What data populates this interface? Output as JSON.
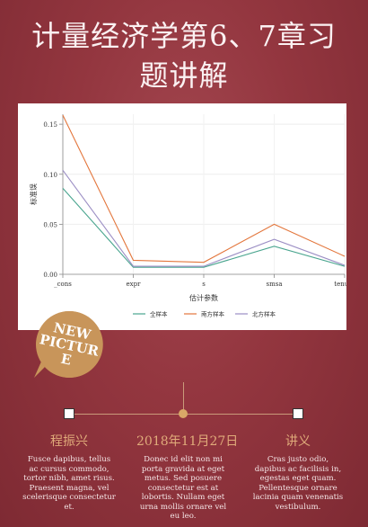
{
  "title": {
    "line1": "计量经济学第6、7章习",
    "line2": "题讲解"
  },
  "badge": {
    "line1": "NEW",
    "line2": "PICTUR",
    "line3": "E"
  },
  "timeline": {
    "columns": [
      {
        "title": "程振兴",
        "body": "Fusce dapibus, tellus ac cursus commodo, tortor nibh, amet risus. Praesent magna, vel scelerisque consectetur et."
      },
      {
        "title": "2018年11月27日",
        "body": "Donec id elit non mi porta gravida at eget metus. Sed posuere consectetur est at lobortis. Nullam eget urna mollis ornare vel eu leo."
      },
      {
        "title": "讲义",
        "body": "Cras justo odio, dapibus ac facilisis in, egestas eget quam. Pellentesque ornare lacinia quam venenatis vestibulum."
      }
    ]
  },
  "colors": {
    "background": "#93363f",
    "accent": "#d9a867",
    "series_full": "#4aa58f",
    "series_south": "#e3763c",
    "series_north": "#9b8ec4"
  },
  "chart_data": {
    "type": "line",
    "xlabel": "估计参数",
    "ylabel": "标准误",
    "categories": [
      "_cons",
      "expr",
      "s",
      "smsa",
      "tenure"
    ],
    "ylim": [
      0,
      0.16
    ],
    "yticks": [
      "0.00",
      "0.05",
      "0.10",
      "0.15"
    ],
    "grid": true,
    "legend_position": "bottom",
    "series": [
      {
        "name": "全样本",
        "values": [
          0.086,
          0.007,
          0.007,
          0.028,
          0.008
        ]
      },
      {
        "name": "南方样本",
        "values": [
          0.159,
          0.014,
          0.012,
          0.05,
          0.018
        ]
      },
      {
        "name": "北方样本",
        "values": [
          0.104,
          0.008,
          0.008,
          0.035,
          0.009
        ]
      }
    ]
  }
}
